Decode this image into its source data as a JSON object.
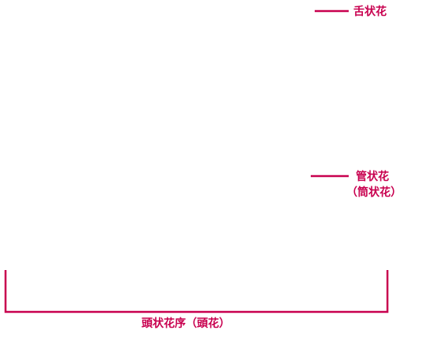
{
  "labels": {
    "ray_floret": "舌状花",
    "disc_floret": "管状花",
    "disc_floret_alt": "（筒状花）",
    "capitulum": "頭状花序（頭花）"
  }
}
